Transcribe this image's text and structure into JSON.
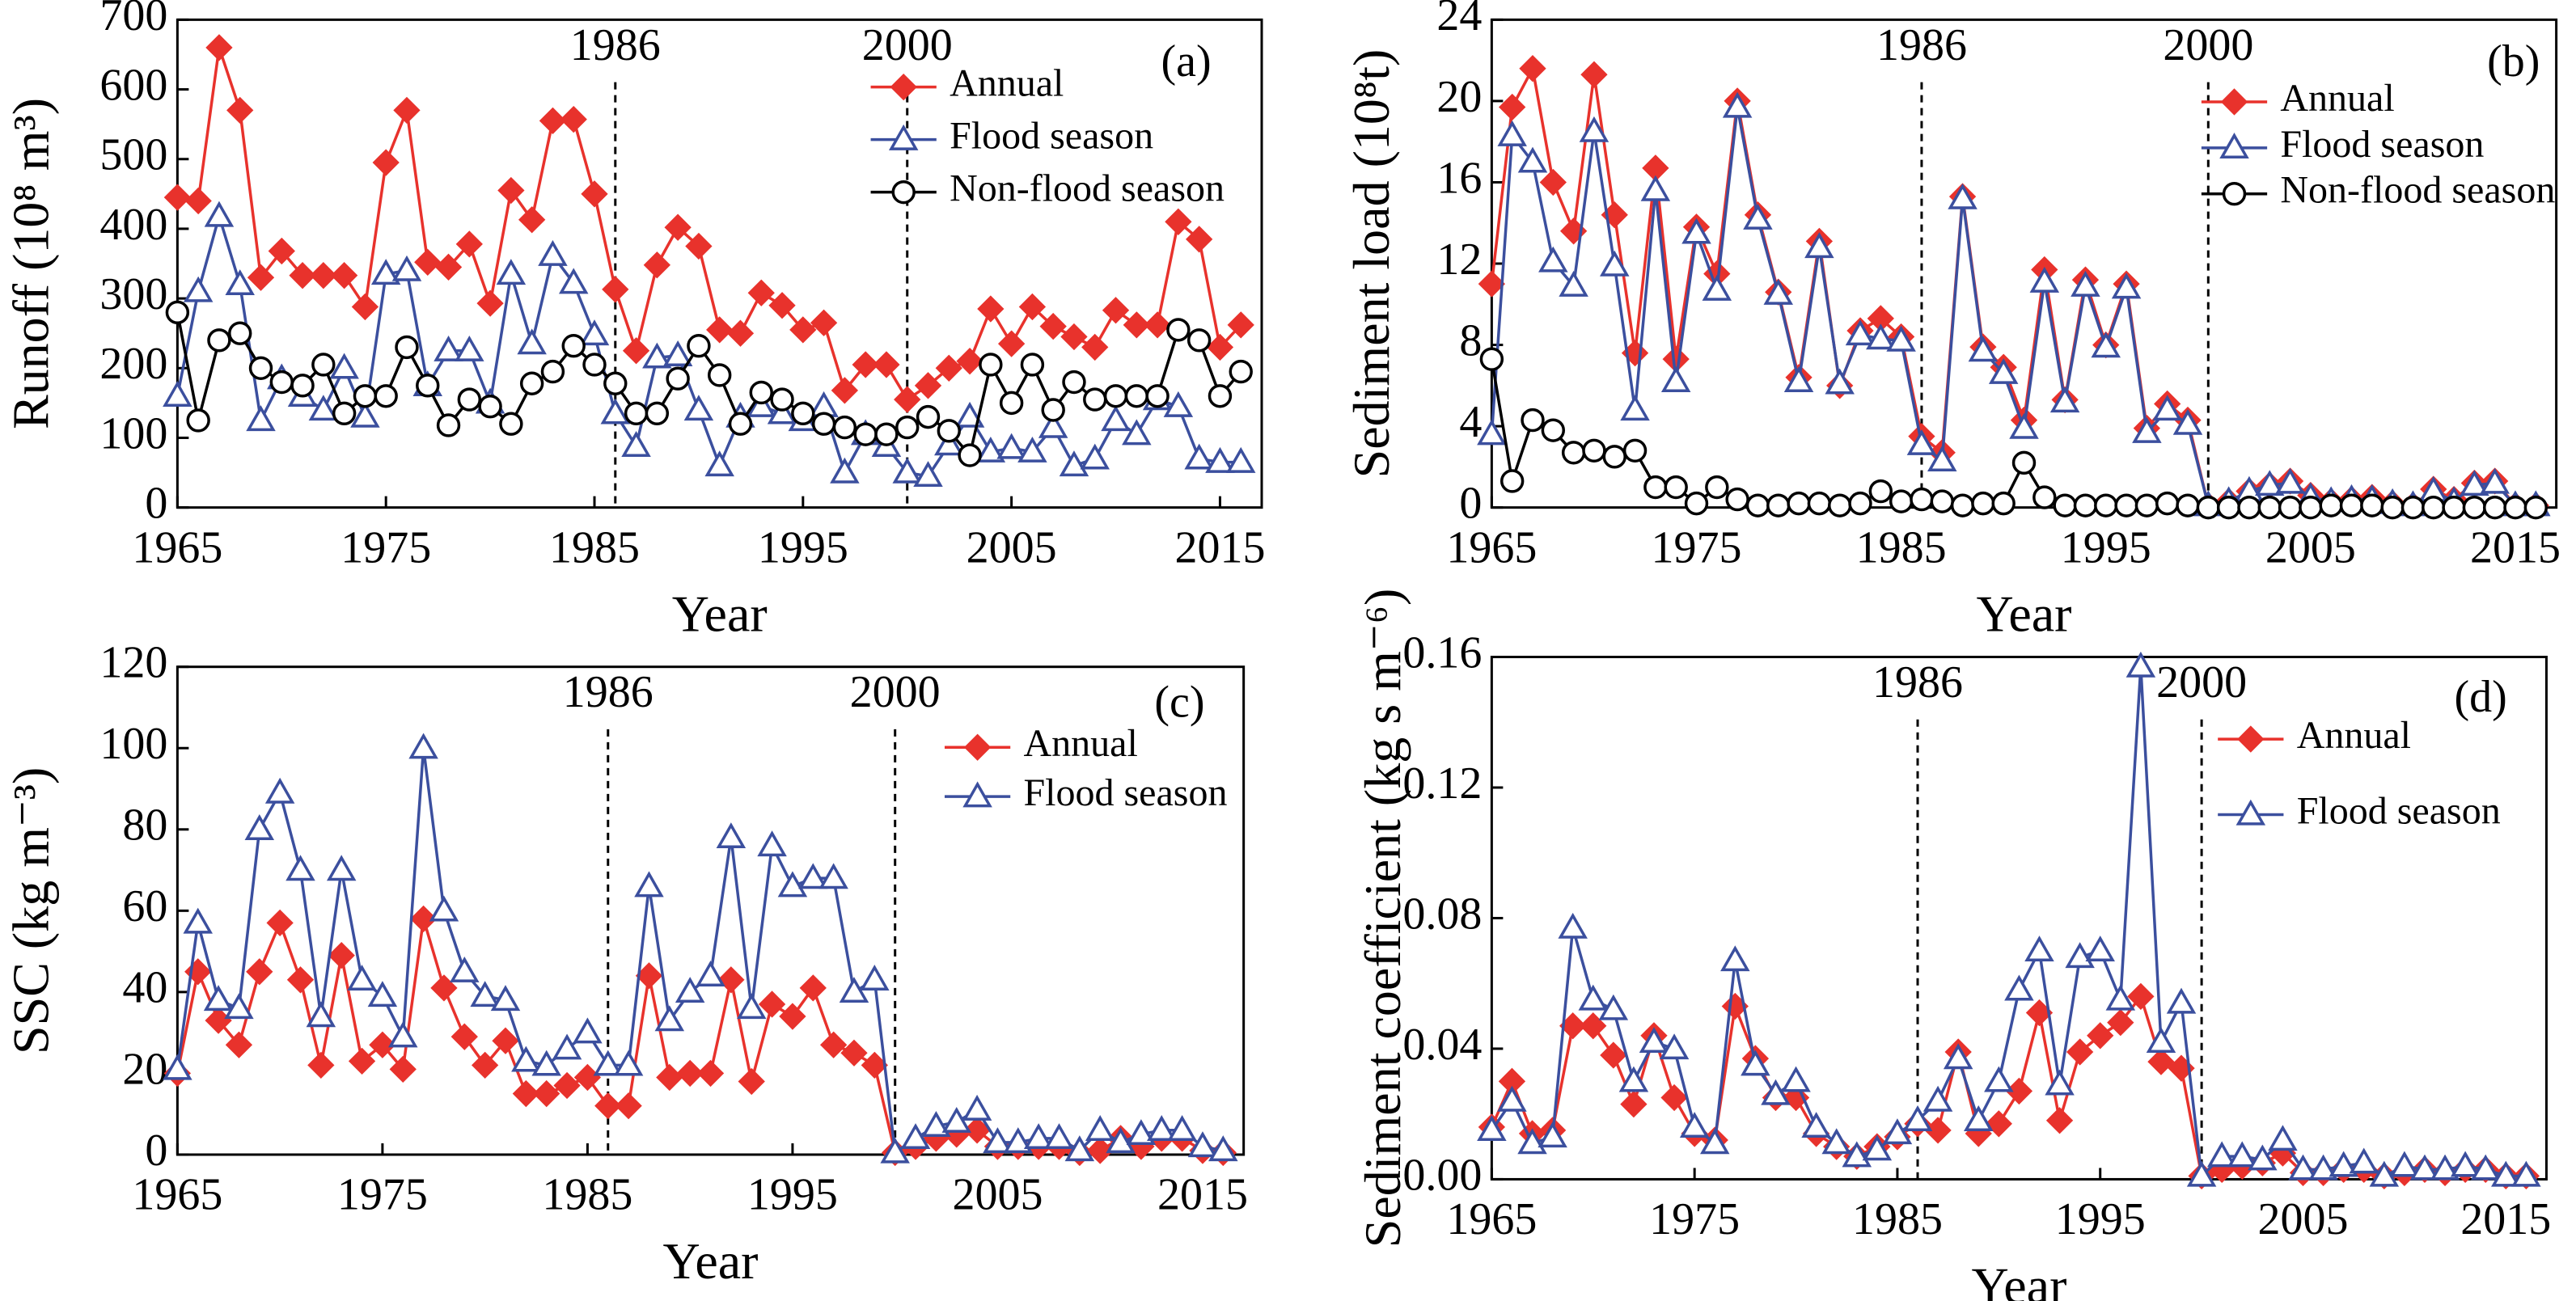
{
  "chart_data": [
    {
      "type": "line",
      "annotation": "(a)",
      "x_label": "Year",
      "y_label": "Runoff (10⁸ m³)",
      "x": [
        1965,
        1966,
        1967,
        1968,
        1969,
        1970,
        1971,
        1972,
        1973,
        1974,
        1975,
        1976,
        1977,
        1978,
        1979,
        1980,
        1981,
        1982,
        1983,
        1984,
        1985,
        1986,
        1987,
        1988,
        1989,
        1990,
        1991,
        1992,
        1993,
        1994,
        1995,
        1996,
        1997,
        1998,
        1999,
        2000,
        2001,
        2002,
        2003,
        2004,
        2005,
        2006,
        2007,
        2008,
        2009,
        2010,
        2011,
        2012,
        2013,
        2014,
        2015,
        2016
      ],
      "xlim": [
        1965,
        2017
      ],
      "xticks": [
        1965,
        1975,
        1985,
        1995,
        2005,
        2015
      ],
      "ylim": [
        0,
        700
      ],
      "yticks": [
        0,
        100,
        200,
        300,
        400,
        500,
        600,
        700
      ],
      "vlines": [
        {
          "x": 1986,
          "label": "1986"
        },
        {
          "x": 2000,
          "label": "2000"
        }
      ],
      "legend": "upper right",
      "series": [
        {
          "name": "Annual",
          "color": "#e8322c",
          "marker": "diamond",
          "values": [
            445,
            440,
            660,
            570,
            330,
            368,
            333,
            333,
            333,
            288,
            495,
            570,
            352,
            345,
            378,
            293,
            455,
            413,
            555,
            557,
            450,
            313,
            225,
            348,
            402,
            375,
            255,
            250,
            308,
            290,
            255,
            265,
            168,
            205,
            205,
            155,
            175,
            200,
            210,
            285,
            235,
            288,
            260,
            245,
            230,
            283,
            262,
            262,
            410,
            385,
            230,
            262
          ]
        },
        {
          "name": "Flood season",
          "color": "#3b4f9e",
          "marker": "triangle",
          "values": [
            160,
            310,
            418,
            320,
            125,
            185,
            160,
            140,
            200,
            130,
            335,
            340,
            175,
            225,
            225,
            150,
            335,
            235,
            362,
            322,
            248,
            135,
            88,
            215,
            218,
            140,
            60,
            130,
            145,
            135,
            125,
            145,
            50,
            105,
            88,
            50,
            45,
            90,
            130,
            80,
            85,
            80,
            115,
            60,
            70,
            125,
            105,
            155,
            145,
            70,
            65,
            65
          ]
        },
        {
          "name": "Non-flood season",
          "color": "#000000",
          "marker": "circle",
          "values": [
            280,
            125,
            240,
            250,
            200,
            180,
            175,
            205,
            135,
            160,
            160,
            230,
            175,
            118,
            155,
            145,
            120,
            178,
            195,
            232,
            205,
            178,
            135,
            135,
            185,
            232,
            190,
            120,
            165,
            155,
            135,
            120,
            115,
            105,
            105,
            115,
            130,
            110,
            75,
            205,
            150,
            205,
            140,
            180,
            155,
            160,
            160,
            160,
            255,
            240,
            160,
            195
          ]
        }
      ]
    },
    {
      "type": "line",
      "annotation": "(b)",
      "x_label": "Year",
      "y_label": "Sediment load (10⁸t)",
      "x": [
        1965,
        1966,
        1967,
        1968,
        1969,
        1970,
        1971,
        1972,
        1973,
        1974,
        1975,
        1976,
        1977,
        1978,
        1979,
        1980,
        1981,
        1982,
        1983,
        1984,
        1985,
        1986,
        1987,
        1988,
        1989,
        1990,
        1991,
        1992,
        1993,
        1994,
        1995,
        1996,
        1997,
        1998,
        1999,
        2000,
        2001,
        2002,
        2003,
        2004,
        2005,
        2006,
        2007,
        2008,
        2009,
        2010,
        2011,
        2012,
        2013,
        2014,
        2015,
        2016
      ],
      "xlim": [
        1965,
        2017
      ],
      "xticks": [
        1965,
        1975,
        1985,
        1995,
        2005,
        2015
      ],
      "ylim": [
        0,
        24
      ],
      "yticks": [
        0,
        4,
        8,
        12,
        16,
        20,
        24
      ],
      "vlines": [
        {
          "x": 1986,
          "label": "1986"
        },
        {
          "x": 2000,
          "label": "2000"
        }
      ],
      "legend": "upper right",
      "series": [
        {
          "name": "Annual",
          "color": "#e8322c",
          "marker": "diamond",
          "values": [
            11,
            19.7,
            21.6,
            16,
            13.6,
            21.3,
            14.4,
            7.6,
            16.7,
            7.3,
            13.8,
            11.5,
            20,
            14.4,
            10.6,
            6.4,
            13.1,
            6,
            8.7,
            9.3,
            8.4,
            3.5,
            2.7,
            15.3,
            7.9,
            6.9,
            4.3,
            11.7,
            5.3,
            11.2,
            8,
            11,
            3.9,
            5.1,
            4.3,
            0.1,
            0.3,
            0.8,
            1.1,
            1.3,
            0.6,
            0.3,
            0.4,
            0.5,
            0.2,
            0.1,
            0.9,
            0.4,
            1.2,
            1.3,
            0.1,
            0.1
          ]
        },
        {
          "name": "Flood season",
          "color": "#3b4f9e",
          "marker": "triangle",
          "values": [
            3.6,
            18.3,
            17,
            12.1,
            10.9,
            18.5,
            11.9,
            4.8,
            15.6,
            6.2,
            13.5,
            10.7,
            19.7,
            14.2,
            10.5,
            6.2,
            12.8,
            6.1,
            8.5,
            8.3,
            8.2,
            3.1,
            2.3,
            15.2,
            7.7,
            6.6,
            3.9,
            11.1,
            5.2,
            10.9,
            7.9,
            10.8,
            3.7,
            4.8,
            4.1,
            0.1,
            0.3,
            0.8,
            1.1,
            1.2,
            0.5,
            0.3,
            0.4,
            0.4,
            0.2,
            0.1,
            0.8,
            0.3,
            1.1,
            1.2,
            0.1,
            0.1
          ]
        },
        {
          "name": "Non-flood season",
          "color": "#000000",
          "marker": "circle",
          "values": [
            7.3,
            1.3,
            4.3,
            3.8,
            2.7,
            2.8,
            2.5,
            2.8,
            1,
            1,
            0.2,
            1,
            0.4,
            0.1,
            0.1,
            0.2,
            0.2,
            0.1,
            0.2,
            0.8,
            0.3,
            0.4,
            0.3,
            0.1,
            0.2,
            0.2,
            2.2,
            0.5,
            0.1,
            0.1,
            0.1,
            0.1,
            0.1,
            0.2,
            0.1,
            0,
            0,
            0,
            0,
            0,
            0,
            0.1,
            0.1,
            0.1,
            0,
            0,
            0,
            0,
            0,
            0,
            0,
            0
          ]
        }
      ]
    },
    {
      "type": "line",
      "annotation": "(c)",
      "x_label": "Year",
      "y_label": "SSC (kg m⁻³)",
      "x": [
        1965,
        1966,
        1967,
        1968,
        1969,
        1970,
        1971,
        1972,
        1973,
        1974,
        1975,
        1976,
        1977,
        1978,
        1979,
        1980,
        1981,
        1982,
        1983,
        1984,
        1985,
        1986,
        1987,
        1988,
        1989,
        1990,
        1991,
        1992,
        1993,
        1994,
        1995,
        1996,
        1997,
        1998,
        1999,
        2000,
        2001,
        2002,
        2003,
        2004,
        2005,
        2006,
        2007,
        2008,
        2009,
        2010,
        2011,
        2012,
        2013,
        2014,
        2015,
        2016
      ],
      "xlim": [
        1965,
        2017
      ],
      "xticks": [
        1965,
        1975,
        1985,
        1995,
        2005,
        2015
      ],
      "ylim": [
        0,
        120
      ],
      "yticks": [
        0,
        20,
        40,
        60,
        80,
        100,
        120
      ],
      "vlines": [
        {
          "x": 1986,
          "label": "1986"
        },
        {
          "x": 2000,
          "label": "2000"
        }
      ],
      "legend": "upper right",
      "series": [
        {
          "name": "Annual",
          "color": "#e8322c",
          "marker": "diamond",
          "values": [
            20,
            45,
            33,
            27,
            45,
            57,
            43,
            22,
            49,
            23,
            27,
            21,
            58,
            41,
            29,
            22,
            28,
            15,
            15,
            17,
            19,
            12,
            12,
            44,
            19,
            20,
            20,
            43,
            18,
            37,
            34,
            41,
            27,
            25,
            22,
            0.5,
            2,
            4,
            5,
            6,
            2,
            2,
            2,
            2,
            0.5,
            1,
            4,
            2,
            4,
            4,
            1,
            0.5
          ]
        },
        {
          "name": "Flood season",
          "color": "#3b4f9e",
          "marker": "triangle",
          "values": [
            21,
            57,
            38,
            36,
            80,
            89,
            70,
            34,
            70,
            43,
            39,
            29,
            100,
            60,
            45,
            39,
            38,
            23,
            22,
            26,
            30,
            22,
            22,
            66,
            33,
            40,
            44,
            78,
            36,
            76,
            66,
            68,
            68,
            40,
            43,
            0.5,
            4,
            7,
            8,
            11,
            3,
            3,
            4,
            4,
            1,
            6,
            3,
            5,
            6,
            6,
            2,
            1
          ]
        }
      ]
    },
    {
      "type": "line",
      "annotation": "(d)",
      "x_label": "Year",
      "y_label": "Sediment coefficient (kg s m⁻⁶)",
      "x": [
        1965,
        1966,
        1967,
        1968,
        1969,
        1970,
        1971,
        1972,
        1973,
        1974,
        1975,
        1976,
        1977,
        1978,
        1979,
        1980,
        1981,
        1982,
        1983,
        1984,
        1985,
        1986,
        1987,
        1988,
        1989,
        1990,
        1991,
        1992,
        1993,
        1994,
        1995,
        1996,
        1997,
        1998,
        1999,
        2000,
        2001,
        2002,
        2003,
        2004,
        2005,
        2006,
        2007,
        2008,
        2009,
        2010,
        2011,
        2012,
        2013,
        2014,
        2015,
        2016
      ],
      "xlim": [
        1965,
        2017
      ],
      "xticks": [
        1965,
        1975,
        1985,
        1995,
        2005,
        2015
      ],
      "ylim": [
        0,
        0.16
      ],
      "yticks": [
        {
          "value": 0,
          "label": "0.00"
        },
        0.04,
        0.08,
        0.12,
        0.16
      ],
      "vlines": [
        {
          "x": 1986,
          "label": "1986"
        },
        {
          "x": 2000,
          "label": "2000"
        }
      ],
      "legend": "upper right",
      "series": [
        {
          "name": "Annual",
          "color": "#e8322c",
          "marker": "diamond",
          "values": [
            0.016,
            0.03,
            0.014,
            0.015,
            0.047,
            0.047,
            0.038,
            0.023,
            0.044,
            0.025,
            0.014,
            0.012,
            0.053,
            0.037,
            0.025,
            0.025,
            0.014,
            0.01,
            0.007,
            0.01,
            0.013,
            0.017,
            0.015,
            0.039,
            0.014,
            0.017,
            0.027,
            0.051,
            0.018,
            0.039,
            0.044,
            0.048,
            0.056,
            0.036,
            0.034,
            0.001,
            0.003,
            0.004,
            0.005,
            0.008,
            0.002,
            0.002,
            0.003,
            0.003,
            0.001,
            0.002,
            0.003,
            0.002,
            0.003,
            0.003,
            0.001,
            0.001
          ]
        },
        {
          "name": "Flood season",
          "color": "#3b4f9e",
          "marker": "triangle",
          "values": [
            0.015,
            0.024,
            0.011,
            0.013,
            0.077,
            0.055,
            0.052,
            0.03,
            0.042,
            0.04,
            0.016,
            0.011,
            0.067,
            0.035,
            0.026,
            0.03,
            0.016,
            0.011,
            0.007,
            0.009,
            0.014,
            0.018,
            0.024,
            0.037,
            0.018,
            0.03,
            0.058,
            0.07,
            0.029,
            0.068,
            0.07,
            0.055,
            0.157,
            0.042,
            0.054,
            0.001,
            0.007,
            0.007,
            0.006,
            0.012,
            0.003,
            0.003,
            0.004,
            0.005,
            0.001,
            0.004,
            0.003,
            0.003,
            0.004,
            0.003,
            0.001,
            0.001
          ]
        }
      ]
    }
  ]
}
